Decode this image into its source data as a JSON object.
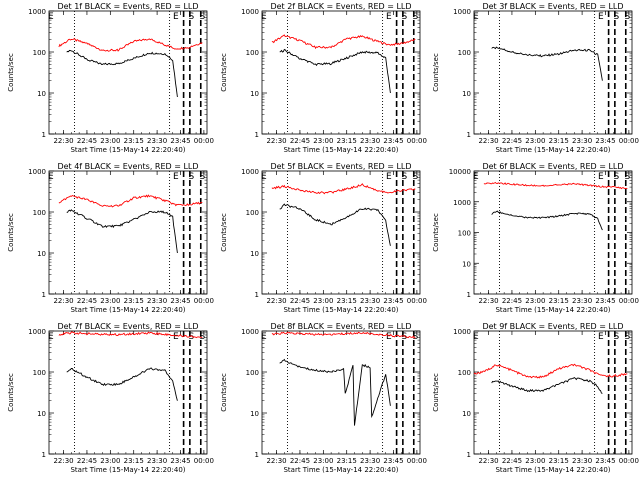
{
  "figure": {
    "background": "#ffffff",
    "event_color": "#000000",
    "lld_color": "#ff0000"
  },
  "chart_data": [
    {
      "type": "line",
      "title": "Det 1f BLACK = Events, RED = LLD",
      "xlabel": "Start Time (15-May-14 22:20:40)",
      "ylabel": "Counts/sec",
      "y_scale": "log",
      "xlim": [
        "22:20:40",
        "00:02"
      ],
      "ylim": [
        1,
        1000
      ],
      "x_ticks": [
        "22:30",
        "22:45",
        "23:00",
        "23:15",
        "23:30",
        "23:45",
        "00:00"
      ],
      "y_ticks": [
        "1",
        "10",
        "100",
        "1000"
      ],
      "x_units": "minutes since 22:20:40",
      "top_labels": [
        "E",
        "E",
        "S",
        "S"
      ],
      "dotted_lines_x": [
        "22:37",
        "23:38"
      ],
      "dashed_lines_x": [
        "23:47",
        "23:51",
        "23:58"
      ],
      "series": [
        {
          "color": "#ff0000",
          "x": [
            "22:27",
            "22:35",
            "22:45",
            "22:55",
            "23:05",
            "23:15",
            "23:25",
            "23:35",
            "23:42",
            "23:50",
            "23:59"
          ],
          "values": [
            140,
            210,
            160,
            110,
            110,
            180,
            210,
            150,
            120,
            130,
            170
          ]
        },
        {
          "color": "#000000",
          "x": [
            "22:32",
            "22:35",
            "22:45",
            "22:55",
            "23:05",
            "23:15",
            "23:25",
            "23:35",
            "23:40",
            "23:43"
          ],
          "values": [
            100,
            110,
            65,
            50,
            52,
            70,
            95,
            90,
            65,
            8
          ]
        }
      ]
    },
    {
      "type": "line",
      "title": "Det 2f BLACK = Events, RED = LLD",
      "xlabel": "Start Time (15-May-14 22:20:40)",
      "ylabel": "Counts/sec",
      "y_scale": "log",
      "xlim": [
        "22:20:40",
        "00:02"
      ],
      "ylim": [
        1,
        1000
      ],
      "x_ticks": [
        "22:30",
        "22:45",
        "23:00",
        "23:15",
        "23:30",
        "23:45",
        "00:00"
      ],
      "y_ticks": [
        "1",
        "10",
        "100",
        "1000"
      ],
      "x_units": "minutes since 22:20:40",
      "top_labels": [
        "E",
        "E",
        "S",
        "S"
      ],
      "dotted_lines_x": [
        "22:37",
        "23:38"
      ],
      "dashed_lines_x": [
        "23:47",
        "23:51",
        "23:58"
      ],
      "series": [
        {
          "color": "#ff0000",
          "x": [
            "22:27",
            "22:35",
            "22:45",
            "22:55",
            "23:05",
            "23:15",
            "23:25",
            "23:35",
            "23:42",
            "23:50",
            "23:59"
          ],
          "values": [
            170,
            250,
            190,
            130,
            130,
            210,
            240,
            180,
            150,
            160,
            200
          ]
        },
        {
          "color": "#000000",
          "x": [
            "22:32",
            "22:35",
            "22:45",
            "22:55",
            "23:05",
            "23:15",
            "23:25",
            "23:35",
            "23:40",
            "23:43"
          ],
          "values": [
            100,
            110,
            70,
            50,
            52,
            72,
            100,
            95,
            70,
            10
          ]
        }
      ]
    },
    {
      "type": "line",
      "title": "Det 3f BLACK = Events, RED = LLD",
      "xlabel": "Start Time (15-May-14 22:20:40)",
      "ylabel": "Counts/sec",
      "y_scale": "log",
      "xlim": [
        "22:20:40",
        "00:02"
      ],
      "ylim": [
        1,
        1000
      ],
      "x_ticks": [
        "22:30",
        "22:45",
        "23:00",
        "23:15",
        "23:30",
        "23:45",
        "00:00"
      ],
      "y_ticks": [
        "1",
        "10",
        "100",
        "1000"
      ],
      "x_units": "minutes since 22:20:40",
      "top_labels": [
        "E",
        "E",
        "S",
        "S"
      ],
      "dotted_lines_x": [
        "22:37",
        "23:38"
      ],
      "dashed_lines_x": [
        "23:47",
        "23:51",
        "23:58"
      ],
      "series": [
        {
          "color": "#000000",
          "x": [
            "22:32",
            "22:35",
            "22:45",
            "22:55",
            "23:05",
            "23:15",
            "23:25",
            "23:35",
            "23:40",
            "23:43"
          ],
          "values": [
            120,
            130,
            100,
            85,
            80,
            90,
            110,
            110,
            85,
            20
          ]
        }
      ]
    },
    {
      "type": "line",
      "title": "Det 4f BLACK = Events, RED = LLD",
      "xlabel": "Start Time (15-May-14 22:20:40)",
      "ylabel": "Counts/sec",
      "y_scale": "log",
      "xlim": [
        "22:20:40",
        "00:02"
      ],
      "ylim": [
        1,
        1000
      ],
      "x_ticks": [
        "22:30",
        "22:45",
        "23:00",
        "23:15",
        "23:30",
        "23:45",
        "00:00"
      ],
      "y_ticks": [
        "1",
        "10",
        "100",
        "1000"
      ],
      "x_units": "minutes since 22:20:40",
      "top_labels": [
        "E",
        "E",
        "S",
        "S"
      ],
      "dotted_lines_x": [
        "22:37",
        "23:38"
      ],
      "dashed_lines_x": [
        "23:47",
        "23:51",
        "23:58"
      ],
      "series": [
        {
          "color": "#ff0000",
          "x": [
            "22:27",
            "22:35",
            "22:45",
            "22:55",
            "23:05",
            "23:15",
            "23:25",
            "23:35",
            "23:42",
            "23:50",
            "23:59"
          ],
          "values": [
            170,
            250,
            200,
            140,
            140,
            220,
            250,
            190,
            150,
            150,
            170
          ]
        },
        {
          "color": "#000000",
          "x": [
            "22:32",
            "22:35",
            "22:45",
            "22:55",
            "23:05",
            "23:15",
            "23:25",
            "23:35",
            "23:40",
            "23:43"
          ],
          "values": [
            100,
            110,
            70,
            45,
            45,
            65,
            100,
            100,
            75,
            10
          ]
        }
      ]
    },
    {
      "type": "line",
      "title": "Det 5f BLACK = Events, RED = LLD",
      "xlabel": "Start Time (15-May-14 22:20:40)",
      "ylabel": "Counts/sec",
      "y_scale": "log",
      "xlim": [
        "22:20:40",
        "00:02"
      ],
      "ylim": [
        1,
        1000
      ],
      "x_ticks": [
        "22:30",
        "22:45",
        "23:00",
        "23:15",
        "23:30",
        "23:45",
        "00:00"
      ],
      "y_ticks": [
        "1",
        "10",
        "100",
        "1000"
      ],
      "x_units": "minutes since 22:20:40",
      "top_labels": [
        "E",
        "E",
        "S",
        "S"
      ],
      "dotted_lines_x": [
        "22:37",
        "23:38"
      ],
      "dashed_lines_x": [
        "23:47",
        "23:51",
        "23:58"
      ],
      "series": [
        {
          "color": "#ff0000",
          "x": [
            "22:27",
            "22:35",
            "22:45",
            "22:55",
            "23:05",
            "23:15",
            "23:25",
            "23:35",
            "23:42",
            "23:50",
            "23:59"
          ],
          "values": [
            380,
            420,
            350,
            290,
            300,
            360,
            460,
            330,
            300,
            330,
            360
          ]
        },
        {
          "color": "#000000",
          "x": [
            "22:32",
            "22:35",
            "22:45",
            "22:55",
            "23:05",
            "23:15",
            "23:25",
            "23:35",
            "23:40",
            "23:43"
          ],
          "values": [
            120,
            150,
            120,
            65,
            50,
            75,
            120,
            110,
            60,
            15
          ]
        }
      ]
    },
    {
      "type": "line",
      "title": "Det 6f BLACK = Events, RED = LLD",
      "xlabel": "Start Time (15-May-14 22:20:40)",
      "ylabel": "Counts/sec",
      "y_scale": "log",
      "xlim": [
        "22:20:40",
        "00:02"
      ],
      "ylim": [
        1,
        10000
      ],
      "x_ticks": [
        "22:30",
        "22:45",
        "23:00",
        "23:15",
        "23:30",
        "23:45",
        "00:00"
      ],
      "y_ticks": [
        "1",
        "10",
        "100",
        "1000",
        "10000"
      ],
      "x_units": "minutes since 22:20:40",
      "top_labels": [
        "E",
        "E",
        "S",
        "S"
      ],
      "dotted_lines_x": [
        "22:37",
        "23:38"
      ],
      "dashed_lines_x": [
        "23:47",
        "23:51",
        "23:58"
      ],
      "series": [
        {
          "color": "#ff0000",
          "x": [
            "22:27",
            "22:35",
            "22:45",
            "22:55",
            "23:05",
            "23:15",
            "23:25",
            "23:35",
            "23:42",
            "23:50",
            "23:59"
          ],
          "values": [
            3800,
            4100,
            3700,
            3400,
            3300,
            3500,
            3800,
            3400,
            3100,
            3000,
            2700
          ]
        },
        {
          "color": "#000000",
          "x": [
            "22:32",
            "22:35",
            "22:45",
            "22:55",
            "23:05",
            "23:15",
            "23:25",
            "23:35",
            "23:40",
            "23:43"
          ],
          "values": [
            400,
            480,
            360,
            300,
            300,
            340,
            420,
            400,
            280,
            120
          ]
        }
      ]
    },
    {
      "type": "line",
      "title": "Det 7f BLACK = Events, RED = LLD",
      "xlabel": "Start Time (15-May-14 22:20:40)",
      "ylabel": "Counts/sec",
      "y_scale": "log",
      "xlim": [
        "22:20:40",
        "00:02"
      ],
      "ylim": [
        1,
        1000
      ],
      "x_ticks": [
        "22:30",
        "22:45",
        "23:00",
        "23:15",
        "23:30",
        "23:45",
        "00:00"
      ],
      "y_ticks": [
        "1",
        "10",
        "100",
        "1000"
      ],
      "x_units": "minutes since 22:20:40",
      "top_labels": [
        "E",
        "E",
        "S",
        "S"
      ],
      "dotted_lines_x": [
        "22:37",
        "23:38"
      ],
      "dashed_lines_x": [
        "23:47",
        "23:51",
        "23:58"
      ],
      "series": [
        {
          "color": "#ff0000",
          "x": [
            "22:27",
            "22:35",
            "22:45",
            "22:55",
            "23:05",
            "23:15",
            "23:25",
            "23:35",
            "23:42",
            "23:50",
            "23:59"
          ],
          "values": [
            820,
            900,
            860,
            820,
            820,
            860,
            900,
            830,
            780,
            740,
            700
          ]
        },
        {
          "color": "#000000",
          "x": [
            "22:32",
            "22:35",
            "22:45",
            "22:55",
            "23:05",
            "23:15",
            "23:25",
            "23:35",
            "23:40",
            "23:43"
          ],
          "values": [
            100,
            120,
            75,
            50,
            50,
            75,
            120,
            110,
            60,
            20
          ]
        }
      ]
    },
    {
      "type": "line",
      "title": "Det 8f BLACK = Events, RED = LLD",
      "xlabel": "Start Time (15-May-14 22:20:40)",
      "ylabel": "Counts/sec",
      "y_scale": "log",
      "xlim": [
        "22:20:40",
        "00:02"
      ],
      "ylim": [
        1,
        1000
      ],
      "x_ticks": [
        "22:30",
        "22:45",
        "23:00",
        "23:15",
        "23:30",
        "23:45",
        "00:00"
      ],
      "y_ticks": [
        "1",
        "10",
        "100",
        "1000"
      ],
      "x_units": "minutes since 22:20:40",
      "top_labels": [
        "E",
        "E",
        "S",
        "S"
      ],
      "dotted_lines_x": [
        "22:37",
        "23:38"
      ],
      "dashed_lines_x": [
        "23:47",
        "23:51",
        "23:58"
      ],
      "series": [
        {
          "color": "#ff0000",
          "x": [
            "22:27",
            "22:35",
            "22:45",
            "22:55",
            "23:05",
            "23:15",
            "23:25",
            "23:35",
            "23:42",
            "23:50",
            "23:59"
          ],
          "values": [
            820,
            900,
            860,
            820,
            820,
            860,
            900,
            830,
            780,
            740,
            700
          ]
        },
        {
          "color": "#000000",
          "x": [
            "22:32",
            "22:35",
            "22:45",
            "22:55",
            "23:05",
            "23:13",
            "23:14",
            "23:19",
            "23:20",
            "23:25",
            "23:30",
            "23:31",
            "23:40",
            "23:43"
          ],
          "values": [
            170,
            190,
            130,
            110,
            100,
            120,
            30,
            140,
            5,
            150,
            130,
            8,
            90,
            15
          ]
        }
      ]
    },
    {
      "type": "line",
      "title": "Det 9f BLACK = Events, RED = LLD",
      "xlabel": "Start Time (15-May-14 22:20:40)",
      "ylabel": "Counts/sec",
      "y_scale": "log",
      "xlim": [
        "22:20:40",
        "00:02"
      ],
      "ylim": [
        1,
        1000
      ],
      "x_ticks": [
        "22:30",
        "22:45",
        "23:00",
        "23:15",
        "23:30",
        "23:45",
        "00:00"
      ],
      "y_ticks": [
        "1",
        "10",
        "100",
        "1000"
      ],
      "x_units": "minutes since 22:20:40",
      "top_labels": [
        "E",
        "E",
        "S",
        "S"
      ],
      "dotted_lines_x": [
        "22:37",
        "23:38"
      ],
      "dashed_lines_x": [
        "23:47",
        "23:51",
        "23:58"
      ],
      "series": [
        {
          "color": "#ff0000",
          "x": [
            "22:20:40",
            "22:27",
            "22:35",
            "22:45",
            "22:55",
            "23:05",
            "23:15",
            "23:25",
            "23:35",
            "23:42",
            "23:50",
            "23:59"
          ],
          "values": [
            90,
            100,
            150,
            110,
            75,
            75,
            120,
            150,
            110,
            80,
            80,
            90
          ]
        },
        {
          "color": "#000000",
          "x": [
            "22:32",
            "22:35",
            "22:45",
            "22:55",
            "23:05",
            "23:15",
            "23:25",
            "23:35",
            "23:40",
            "23:43"
          ],
          "values": [
            55,
            60,
            45,
            35,
            35,
            50,
            70,
            60,
            45,
            30
          ]
        }
      ]
    }
  ]
}
